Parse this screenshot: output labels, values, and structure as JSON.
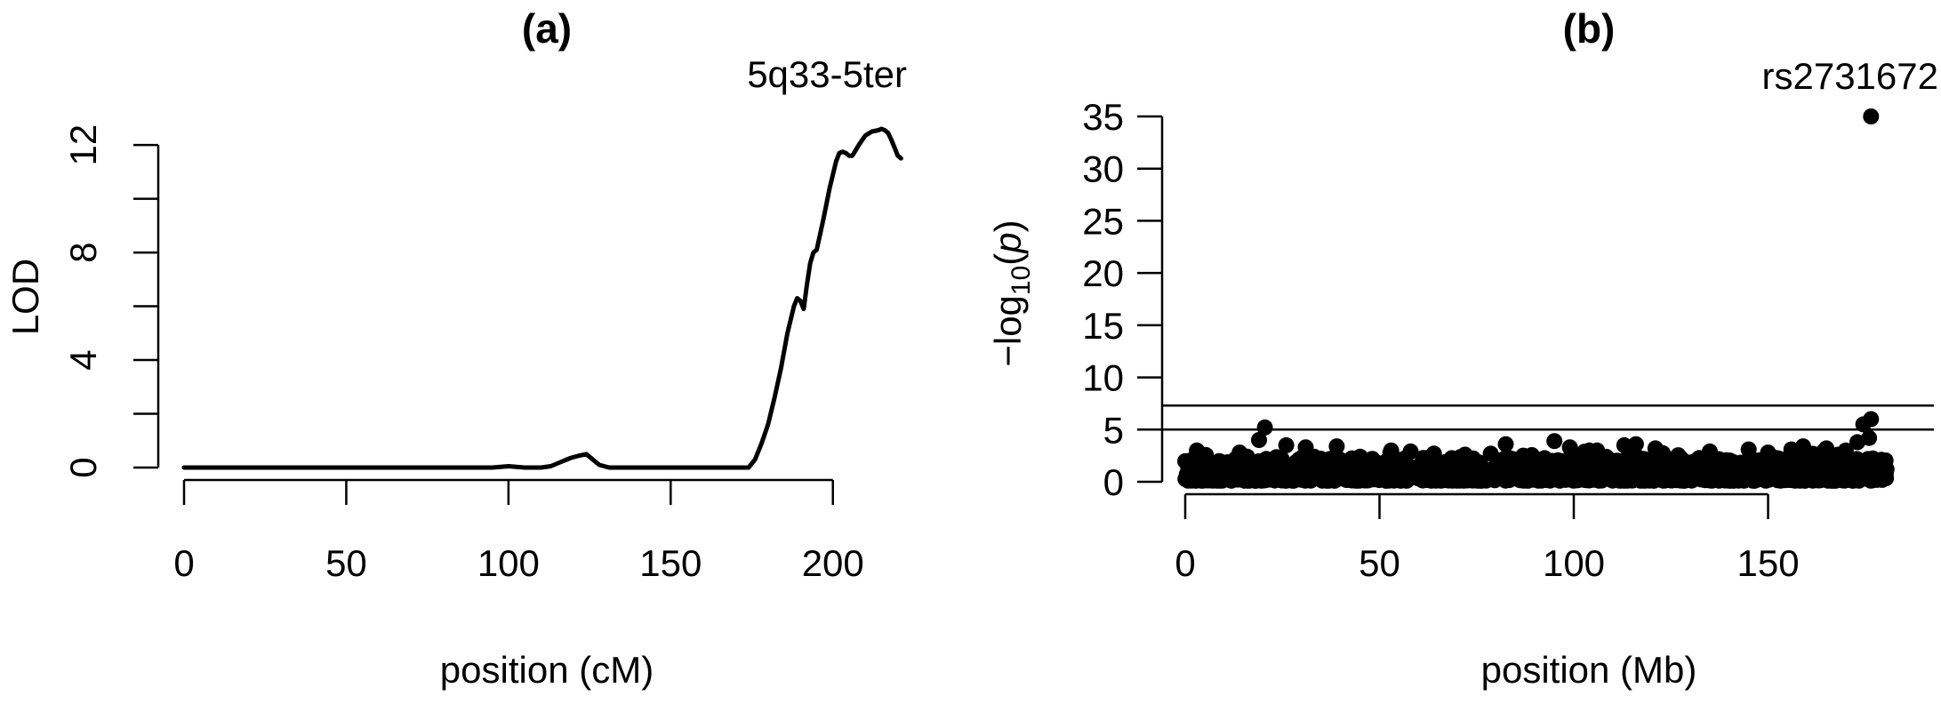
{
  "chart_data": [
    {
      "panel_label": "(a)",
      "type": "line",
      "annotation": "5q33-5ter",
      "xlabel": "position (cM)",
      "ylabel": "LOD",
      "xlim": [
        0,
        222
      ],
      "ylim": [
        0,
        12.5
      ],
      "xticks": [
        0,
        50,
        100,
        150,
        200
      ],
      "yticks": [
        0,
        4,
        8,
        12
      ],
      "grid": false,
      "color": "#000000",
      "x": [
        0,
        20,
        40,
        60,
        80,
        95,
        100,
        105,
        110,
        113,
        116,
        119,
        122,
        124,
        126,
        128,
        131,
        140,
        160,
        174,
        176,
        178,
        180,
        182,
        184,
        186,
        188,
        189,
        190,
        191,
        192,
        193,
        194,
        195,
        197,
        199,
        201,
        202,
        203,
        204,
        205,
        206,
        207,
        208,
        210,
        212,
        214,
        215,
        216,
        217,
        218,
        219,
        220,
        221
      ],
      "y": [
        0,
        0,
        0,
        0,
        0,
        0,
        0.05,
        0,
        0,
        0.05,
        0.2,
        0.35,
        0.45,
        0.5,
        0.3,
        0.1,
        0,
        0,
        0,
        0,
        0.3,
        0.9,
        1.6,
        2.6,
        3.7,
        5.0,
        6.0,
        6.3,
        6.2,
        5.9,
        6.8,
        7.6,
        8.0,
        8.1,
        9.2,
        10.4,
        11.4,
        11.7,
        11.75,
        11.7,
        11.6,
        11.6,
        11.8,
        12.0,
        12.35,
        12.5,
        12.55,
        12.6,
        12.55,
        12.45,
        12.2,
        11.9,
        11.6,
        11.5
      ]
    },
    {
      "panel_label": "(b)",
      "type": "scatter",
      "annotation": "rs2731672",
      "xlabel": "position (Mb)",
      "ylabel": "−log10(p)",
      "xlim": [
        0,
        181
      ],
      "ylim": [
        0,
        35
      ],
      "xticks": [
        0,
        50,
        100,
        150
      ],
      "yticks": [
        0,
        5,
        10,
        15,
        20,
        25,
        30,
        35
      ],
      "grid": false,
      "color": "#000000",
      "hlines": [
        5,
        7.3
      ],
      "points": [
        [
          176.5,
          35.0
        ],
        [
          176.5,
          6.0
        ],
        [
          174.5,
          5.5
        ],
        [
          176.0,
          4.2
        ],
        [
          20.5,
          5.2
        ],
        [
          19.0,
          4.0
        ],
        [
          173.0,
          3.8
        ],
        [
          95.0,
          3.9
        ],
        [
          82.5,
          3.6
        ],
        [
          113.0,
          3.5
        ],
        [
          116.0,
          3.6
        ],
        [
          39.0,
          3.4
        ],
        [
          26.0,
          3.5
        ],
        [
          31.0,
          3.3
        ],
        [
          53.0,
          3.0
        ],
        [
          145.0,
          3.1
        ],
        [
          159.0,
          3.4
        ],
        [
          121.0,
          3.2
        ],
        [
          99.0,
          3.3
        ],
        [
          104.0,
          3.0
        ],
        [
          165.0,
          3.2
        ],
        [
          135.0,
          2.9
        ],
        [
          3.0,
          3.0
        ],
        [
          14.0,
          2.8
        ],
        [
          58.0,
          2.9
        ],
        [
          64.0,
          2.7
        ],
        [
          106.0,
          3.0
        ],
        [
          150.0,
          2.8
        ],
        [
          156.0,
          3.1
        ],
        [
          170.0,
          3.0
        ],
        [
          179.5,
          1.5
        ],
        [
          180.5,
          1.2
        ],
        [
          168.0,
          2.6
        ],
        [
          45.0,
          2.4
        ],
        [
          72.0,
          2.6
        ],
        [
          87.0,
          2.5
        ]
      ],
      "baseline_density": "dense"
    }
  ]
}
